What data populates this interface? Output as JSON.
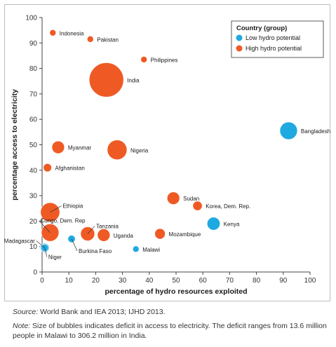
{
  "chart_data": {
    "type": "scatter",
    "xlabel": "percentage of hydro resources exploited",
    "ylabel": "percentage access to electricity",
    "xlim": [
      0,
      100
    ],
    "ylim": [
      0,
      100
    ],
    "x_ticks": [
      0,
      10,
      20,
      30,
      40,
      50,
      60,
      70,
      80,
      90,
      100
    ],
    "y_ticks": [
      0,
      10,
      20,
      30,
      40,
      50,
      60,
      70,
      80,
      90,
      100
    ],
    "grid": false,
    "legend": {
      "title": "Country (group)",
      "placement": "top-right",
      "entries": [
        {
          "name": "Low hydro potential",
          "color": "#1fa9e1"
        },
        {
          "name": "High hydro potential",
          "color": "#ef5a24"
        }
      ]
    },
    "points": [
      {
        "label": "Indonesia",
        "x": 4,
        "y": 94,
        "deficit": 13.6,
        "group": "high"
      },
      {
        "label": "Pakistan",
        "x": 18,
        "y": 91.5,
        "deficit": 13.6,
        "group": "high"
      },
      {
        "label": "Philippines",
        "x": 38,
        "y": 83.5,
        "deficit": 13.6,
        "group": "high"
      },
      {
        "label": "India",
        "x": 24,
        "y": 75.5,
        "deficit": 306.2,
        "group": "high"
      },
      {
        "label": "Bangladesh",
        "x": 92,
        "y": 55.5,
        "deficit": 60,
        "group": "low"
      },
      {
        "label": "Myanmar",
        "x": 6,
        "y": 49,
        "deficit": 28,
        "group": "high"
      },
      {
        "label": "Nigeria",
        "x": 28,
        "y": 48,
        "deficit": 80,
        "group": "high"
      },
      {
        "label": "Afghanistan",
        "x": 2,
        "y": 41,
        "deficit": 15,
        "group": "high"
      },
      {
        "label": "Sudan",
        "x": 49,
        "y": 29,
        "deficit": 28,
        "group": "high"
      },
      {
        "label": "Korea, Dem. Rep.",
        "x": 58,
        "y": 26,
        "deficit": 17,
        "group": "high"
      },
      {
        "label": "Ethiopia",
        "x": 3,
        "y": 23.5,
        "deficit": 75,
        "group": "high"
      },
      {
        "label": "Kenya",
        "x": 64,
        "y": 19,
        "deficit": 30,
        "group": "low"
      },
      {
        "label": "Congo, Dem. Rep",
        "x": 3,
        "y": 15.5,
        "deficit": 60,
        "group": "high"
      },
      {
        "label": "Tanzania",
        "x": 17,
        "y": 15,
        "deficit": 36,
        "group": "high"
      },
      {
        "label": "Uganda",
        "x": 23,
        "y": 14.5,
        "deficit": 28,
        "group": "high"
      },
      {
        "label": "Mozambique",
        "x": 44,
        "y": 15,
        "deficit": 20,
        "group": "high"
      },
      {
        "label": "Burkina Faso",
        "x": 11,
        "y": 13,
        "deficit": 14,
        "group": "low"
      },
      {
        "label": "Madagascar",
        "x": 1,
        "y": 9.5,
        "deficit": 16,
        "group": "low"
      },
      {
        "label": "Niger",
        "x": 1,
        "y": 9.5,
        "deficit": 14,
        "group": "low"
      },
      {
        "label": "Malawi",
        "x": 35,
        "y": 9,
        "deficit": 13.6,
        "group": "low"
      }
    ]
  },
  "captions": {
    "source_label": "Source:",
    "source_text": " World Bank and IEA 2013; IJHD 2013.",
    "note_label": "Note:",
    "note_text": " Size of bubbles indicates deficit in access to electricity. The deficit ranges from 13.6 million people in Malawi to 306.2 million in India."
  }
}
